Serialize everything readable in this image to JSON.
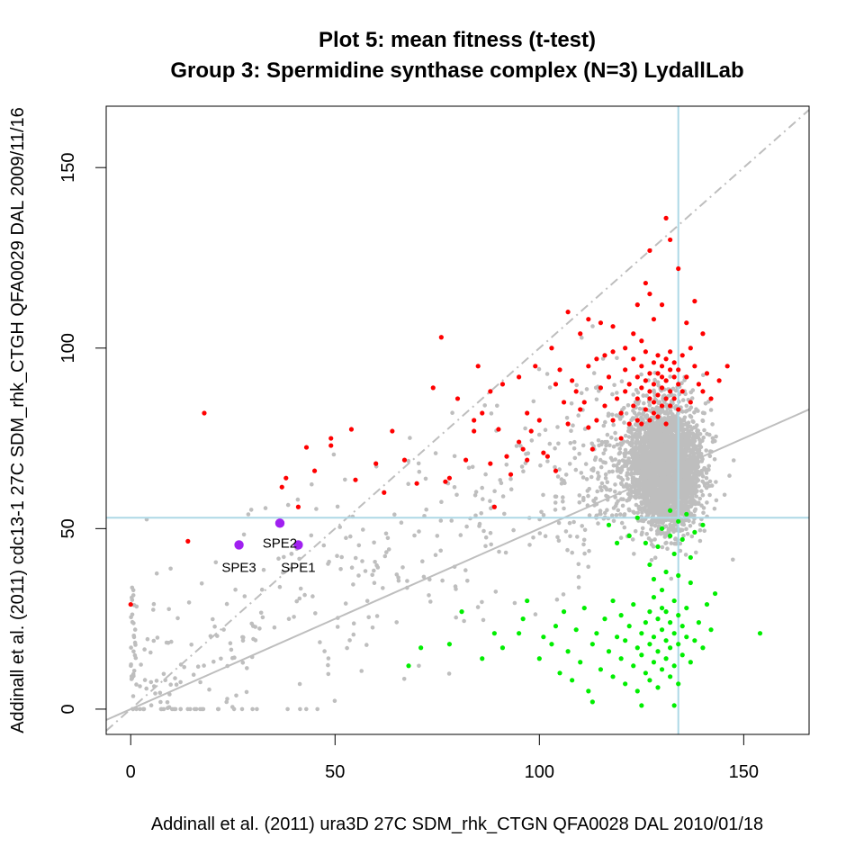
{
  "chart_data": {
    "type": "scatter",
    "title": "Plot 5: mean fitness (t-test)",
    "subtitle": "Group 3: Spermidine synthase complex (N=3) LydallLab",
    "xlabel": "Addinall et al. (2011) ura3D 27C SDM_rhk_CTGN   QFA0028 DAL 2010/01/18",
    "ylabel": "Addinall et al. (2011) cdc13-1 27C SDM_rhk_CTGH   QFA0029 DAL 2009/11/16",
    "xlim": [
      -6,
      166
    ],
    "ylim": [
      -7,
      167
    ],
    "x_ticks": [
      0,
      50,
      100,
      150
    ],
    "y_ticks": [
      0,
      50,
      100,
      150
    ],
    "reference_lines": {
      "vertical_x": 134,
      "horizontal_y": 53,
      "identity": {
        "slope": 1,
        "intercept": 0
      },
      "regression": {
        "slope": 0.5,
        "intercept": 0
      }
    },
    "colors": {
      "background_points": "#bebebe",
      "suppressors": "#ff0000",
      "enhancers": "#00ee00",
      "highlighted": "#a020f0",
      "reference": "#add8e6",
      "fit_lines": "#bebebe"
    },
    "highlighted_points": [
      {
        "label": "SPE3",
        "x": 26.5,
        "y": 45.5
      },
      {
        "label": "SPE2",
        "x": 36.5,
        "y": 51.5
      },
      {
        "label": "SPE1",
        "x": 41,
        "y": 45.5
      }
    ],
    "red_points": [
      [
        18,
        82
      ],
      [
        14,
        46.5
      ],
      [
        0,
        29
      ],
      [
        37,
        61.5
      ],
      [
        38,
        64
      ],
      [
        41,
        56
      ],
      [
        43,
        72.5
      ],
      [
        45,
        66
      ],
      [
        49,
        73
      ],
      [
        49,
        75
      ],
      [
        54,
        77.5
      ],
      [
        55,
        63.5
      ],
      [
        60,
        68
      ],
      [
        62,
        60
      ],
      [
        64,
        77
      ],
      [
        67,
        69
      ],
      [
        70,
        62.5
      ],
      [
        74,
        89
      ],
      [
        76,
        103
      ],
      [
        77,
        63
      ],
      [
        78,
        64
      ],
      [
        80,
        86
      ],
      [
        82,
        69
      ],
      [
        84,
        77
      ],
      [
        84,
        80
      ],
      [
        86,
        82
      ],
      [
        88,
        68
      ],
      [
        89,
        56
      ],
      [
        90,
        77.5
      ],
      [
        91,
        90
      ],
      [
        92,
        70
      ],
      [
        93,
        65
      ],
      [
        95,
        74
      ],
      [
        96,
        72
      ],
      [
        97,
        69
      ],
      [
        97,
        82
      ],
      [
        98,
        77
      ],
      [
        100,
        80
      ],
      [
        101,
        71
      ],
      [
        102,
        70
      ],
      [
        104,
        66
      ],
      [
        104,
        90
      ],
      [
        105,
        94
      ],
      [
        106,
        85
      ],
      [
        107,
        79
      ],
      [
        108,
        91
      ],
      [
        109,
        88
      ],
      [
        110,
        83
      ],
      [
        111,
        85
      ],
      [
        112,
        78
      ],
      [
        112,
        95
      ],
      [
        113,
        72
      ],
      [
        114,
        97
      ],
      [
        114,
        80
      ],
      [
        115,
        89
      ],
      [
        116,
        84
      ],
      [
        117,
        92
      ],
      [
        118,
        80
      ],
      [
        118,
        99
      ],
      [
        119,
        86
      ],
      [
        120,
        82
      ],
      [
        120,
        75
      ],
      [
        121,
        88
      ],
      [
        121,
        94
      ],
      [
        122,
        79
      ],
      [
        122,
        90
      ],
      [
        123,
        84
      ],
      [
        123,
        97
      ],
      [
        124,
        86
      ],
      [
        124,
        80
      ],
      [
        124,
        92
      ],
      [
        125,
        89
      ],
      [
        125,
        95
      ],
      [
        125,
        79
      ],
      [
        126,
        83
      ],
      [
        126,
        91
      ],
      [
        126,
        99
      ],
      [
        127,
        86
      ],
      [
        127,
        88
      ],
      [
        127,
        93
      ],
      [
        127,
        80
      ],
      [
        128,
        90
      ],
      [
        128,
        85
      ],
      [
        128,
        96
      ],
      [
        128,
        82
      ],
      [
        129,
        93
      ],
      [
        129,
        87
      ],
      [
        129,
        98
      ],
      [
        129,
        81
      ],
      [
        130,
        92
      ],
      [
        130,
        89
      ],
      [
        130,
        95
      ],
      [
        130,
        84
      ],
      [
        131,
        86
      ],
      [
        131,
        97
      ],
      [
        131,
        91
      ],
      [
        131,
        79
      ],
      [
        132,
        94
      ],
      [
        132,
        88
      ],
      [
        132,
        99
      ],
      [
        132,
        84
      ],
      [
        133,
        92
      ],
      [
        133,
        96
      ],
      [
        133,
        86
      ],
      [
        134,
        90
      ],
      [
        134,
        94
      ],
      [
        134,
        83
      ],
      [
        135,
        98
      ],
      [
        135,
        88
      ],
      [
        136,
        92
      ],
      [
        137,
        85
      ],
      [
        137,
        100
      ],
      [
        138,
        95
      ],
      [
        139,
        90
      ],
      [
        140,
        88
      ],
      [
        141,
        93
      ],
      [
        142,
        86
      ],
      [
        144,
        91
      ],
      [
        146,
        95
      ],
      [
        107,
        110
      ],
      [
        110,
        104
      ],
      [
        112,
        108
      ],
      [
        115,
        107
      ],
      [
        118,
        106
      ],
      [
        121,
        100
      ],
      [
        123,
        104
      ],
      [
        124,
        112
      ],
      [
        126,
        118
      ],
      [
        127,
        127
      ],
      [
        128,
        108
      ],
      [
        130,
        112
      ],
      [
        131,
        136
      ],
      [
        132,
        130
      ],
      [
        134,
        122
      ],
      [
        136,
        107
      ],
      [
        138,
        113
      ],
      [
        140,
        104
      ],
      [
        127,
        115
      ],
      [
        125,
        102
      ],
      [
        116,
        98
      ],
      [
        103,
        100
      ],
      [
        99,
        95
      ],
      [
        95,
        92
      ],
      [
        88,
        88
      ],
      [
        85,
        95
      ]
    ],
    "green_points": [
      [
        68,
        12
      ],
      [
        71,
        17
      ],
      [
        78,
        18
      ],
      [
        81,
        27
      ],
      [
        86,
        14
      ],
      [
        89,
        21
      ],
      [
        91,
        17
      ],
      [
        95,
        21
      ],
      [
        96,
        25
      ],
      [
        97,
        30
      ],
      [
        100,
        14
      ],
      [
        101,
        20
      ],
      [
        103,
        18
      ],
      [
        104,
        23
      ],
      [
        105,
        10
      ],
      [
        106,
        27
      ],
      [
        107,
        16
      ],
      [
        108,
        8
      ],
      [
        109,
        22
      ],
      [
        110,
        13
      ],
      [
        111,
        28
      ],
      [
        112,
        5
      ],
      [
        113,
        18
      ],
      [
        114,
        21
      ],
      [
        115,
        11
      ],
      [
        116,
        25
      ],
      [
        117,
        16
      ],
      [
        118,
        9
      ],
      [
        118,
        30
      ],
      [
        119,
        20
      ],
      [
        120,
        14
      ],
      [
        120,
        26
      ],
      [
        121,
        7
      ],
      [
        121,
        19
      ],
      [
        122,
        23
      ],
      [
        123,
        12
      ],
      [
        123,
        29
      ],
      [
        124,
        17
      ],
      [
        124,
        5
      ],
      [
        125,
        21
      ],
      [
        125,
        15
      ],
      [
        126,
        10
      ],
      [
        126,
        24
      ],
      [
        127,
        18
      ],
      [
        127,
        27
      ],
      [
        127,
        8
      ],
      [
        128,
        20
      ],
      [
        128,
        13
      ],
      [
        128,
        31
      ],
      [
        129,
        16
      ],
      [
        129,
        25
      ],
      [
        129,
        6
      ],
      [
        130,
        22
      ],
      [
        130,
        11
      ],
      [
        130,
        33
      ],
      [
        131,
        19
      ],
      [
        131,
        14
      ],
      [
        131,
        27
      ],
      [
        132,
        9
      ],
      [
        132,
        24
      ],
      [
        132,
        17
      ],
      [
        133,
        21
      ],
      [
        133,
        30
      ],
      [
        133,
        12
      ],
      [
        134,
        18
      ],
      [
        134,
        26
      ],
      [
        134,
        7
      ],
      [
        135,
        15
      ],
      [
        135,
        23
      ],
      [
        136,
        20
      ],
      [
        136,
        28
      ],
      [
        137,
        13
      ],
      [
        137,
        35
      ],
      [
        138,
        19
      ],
      [
        139,
        24
      ],
      [
        140,
        17
      ],
      [
        141,
        29
      ],
      [
        142,
        22
      ],
      [
        143,
        32
      ],
      [
        154,
        21
      ],
      [
        127,
        40
      ],
      [
        129,
        45
      ],
      [
        130,
        50
      ],
      [
        131,
        38
      ],
      [
        132,
        48
      ],
      [
        133,
        43
      ],
      [
        134,
        52
      ],
      [
        135,
        47
      ],
      [
        136,
        54
      ],
      [
        137,
        42
      ],
      [
        138,
        49
      ],
      [
        126,
        46
      ],
      [
        128,
        36
      ],
      [
        132,
        55
      ],
      [
        134,
        37
      ],
      [
        140,
        51
      ],
      [
        117,
        51
      ],
      [
        119,
        46
      ],
      [
        122,
        48
      ],
      [
        124,
        53
      ],
      [
        130,
        28
      ],
      [
        125,
        1
      ],
      [
        133,
        1
      ],
      [
        113,
        2
      ]
    ]
  }
}
